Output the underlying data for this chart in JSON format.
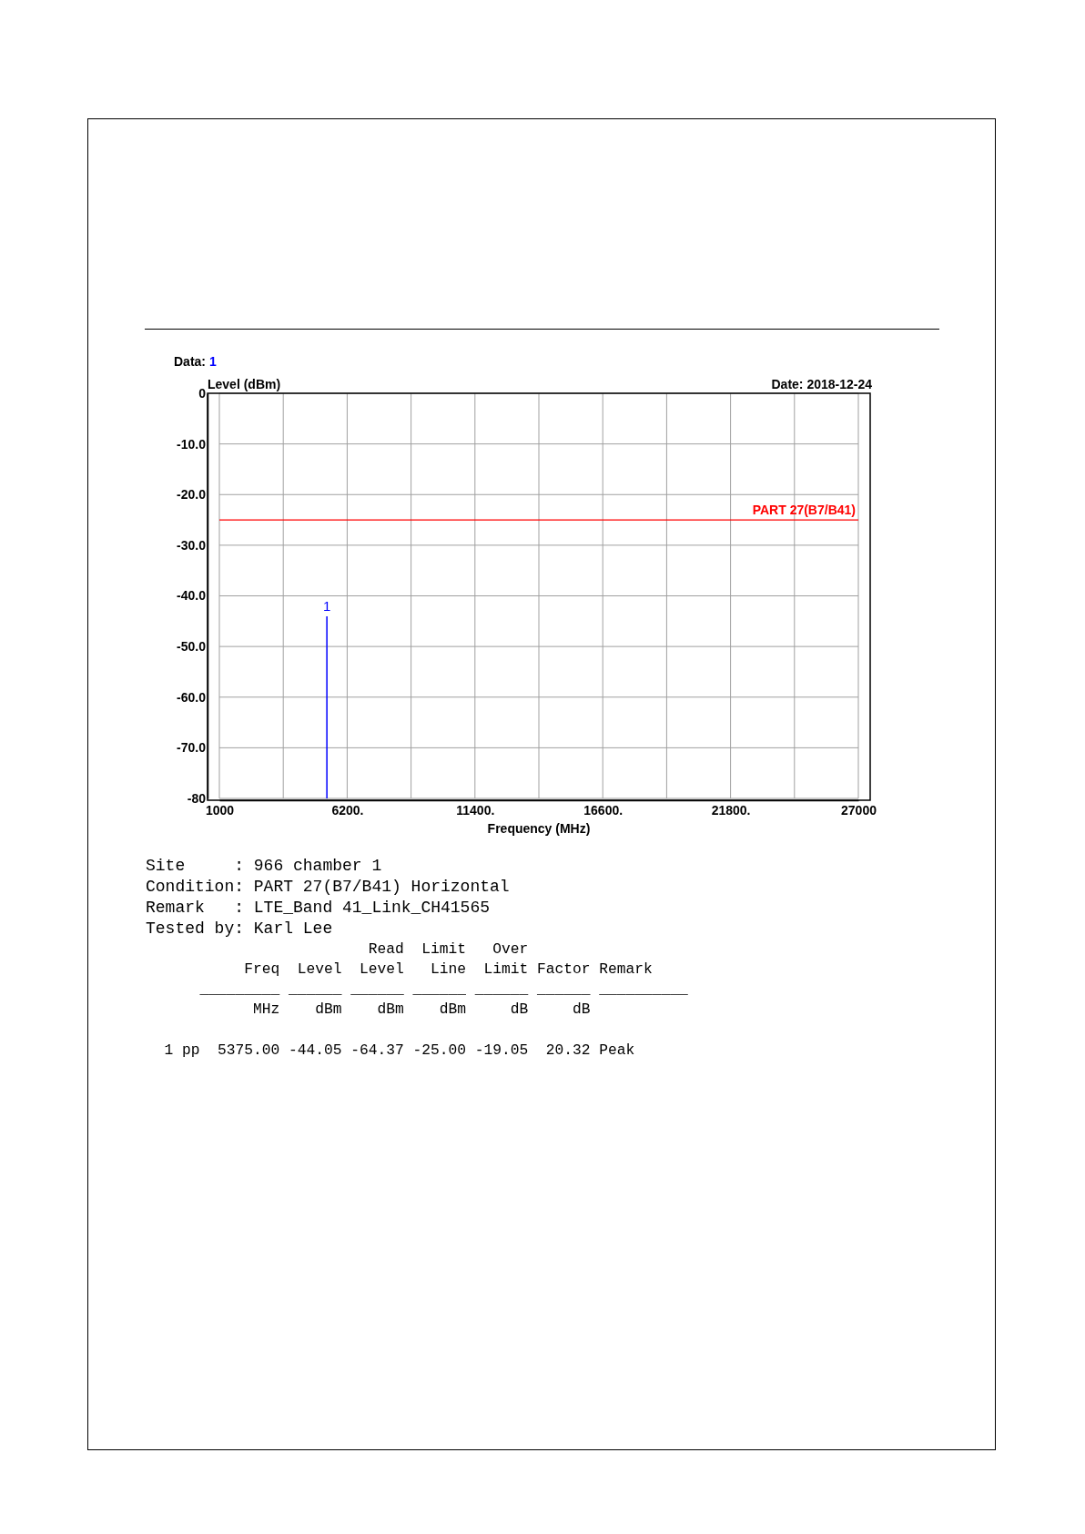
{
  "chart_data": {
    "type": "line",
    "title": "Data: 1",
    "xlabel": "Frequency (MHz)",
    "ylabel": "Level (dBm)",
    "x": [
      5375,
      5375
    ],
    "values": [
      -80,
      -44.05
    ],
    "color": "#0000ff",
    "xlim": [
      1000,
      27000
    ],
    "xticks": [
      1000,
      {
        "value": 3600,
        "label": null
      },
      {
        "value": 6200,
        "label": "6200."
      },
      {
        "value": 8800,
        "label": null
      },
      {
        "value": 11400,
        "label": "11400."
      },
      {
        "value": 14000,
        "label": null
      },
      {
        "value": 16600,
        "label": "16600."
      },
      {
        "value": 19200,
        "label": null
      },
      {
        "value": 21800,
        "label": "21800."
      },
      {
        "value": 24400,
        "label": null
      },
      27000
    ],
    "ylim": [
      -80,
      0
    ],
    "yticks": [
      -80,
      {
        "value": -70,
        "label": "-70.0"
      },
      {
        "value": -60,
        "label": "-60.0"
      },
      {
        "value": -50,
        "label": "-50.0"
      },
      {
        "value": -40,
        "label": "-40.0"
      },
      {
        "value": -30,
        "label": "-30.0"
      },
      {
        "value": -20,
        "label": "-20.0"
      },
      {
        "value": -10,
        "label": "-10.0"
      },
      0
    ],
    "grid": true,
    "ref_lines": [
      {
        "axis": "y",
        "value": -25,
        "label": "PART 27(B7/B41)",
        "color": "#ff0000"
      }
    ],
    "annotations": [
      "Date: 2018-12-24",
      {
        "text": "1",
        "x": 5375,
        "y": -44.05
      },
      "Site     : 966 chamber 1\nCondition: PART 27(B7/B41) Horizontal\nRemark   : LTE_Band 41_Link_CH41565\nTested by: Karl Lee",
      "                         Read  Limit   Over\n           Freq  Level  Level   Line  Limit Factor Remark\n      _________ ______ ______ ______ ______ ______ __________\n            MHz    dBm    dBm    dBm     dB     dB\n\n  1 pp  5375.00 -44.05 -64.37 -25.00 -19.05  20.32 Peak"
    ]
  }
}
